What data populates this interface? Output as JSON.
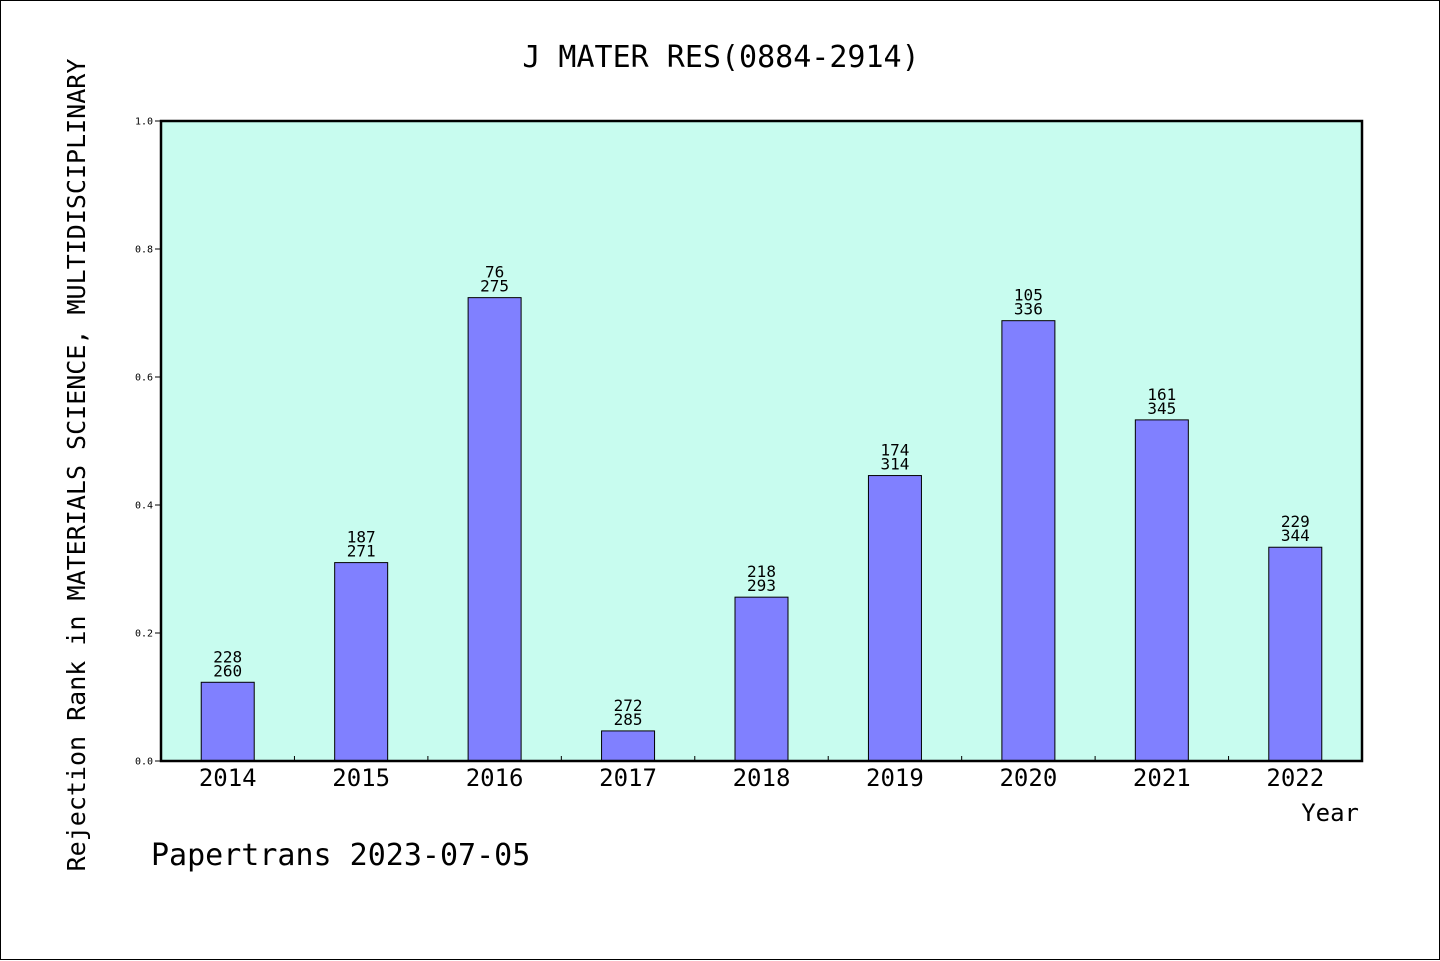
{
  "chart_data": {
    "type": "bar",
    "title": "J MATER RES(0884-2914)",
    "xlabel": "Year",
    "ylabel": "Rejection Rank in MATERIALS SCIENCE, MULTIDISCIPLINARY",
    "ylim": [
      0,
      1.0
    ],
    "yticks": [
      "0.0",
      "0.2",
      "0.4",
      "0.6",
      "0.8",
      "1.0"
    ],
    "categories": [
      "2014",
      "2015",
      "2016",
      "2017",
      "2018",
      "2019",
      "2020",
      "2021",
      "2022"
    ],
    "values": [
      0.123,
      0.31,
      0.724,
      0.047,
      0.256,
      0.446,
      0.688,
      0.533,
      0.334
    ],
    "rank_labels": [
      "228",
      "187",
      "76",
      "272",
      "218",
      "174",
      "105",
      "161",
      "229"
    ],
    "total_labels": [
      "260",
      "271",
      "275",
      "285",
      "293",
      "314",
      "336",
      "345",
      "344"
    ],
    "grid": false,
    "colors": {
      "plot_background": "#c8fcef",
      "bar_fill": "#8080ff",
      "bar_stroke": "#000000"
    }
  },
  "footer": "Papertrans 2023-07-05"
}
